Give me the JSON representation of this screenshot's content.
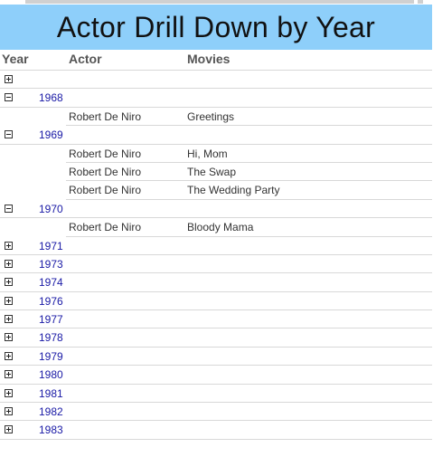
{
  "title": "Actor Drill Down by Year",
  "columns": {
    "year": "Year",
    "actor": "Actor",
    "movies": "Movies"
  },
  "groups": [
    {
      "year": "",
      "expanded": false,
      "rows": []
    },
    {
      "year": "1968",
      "expanded": true,
      "rows": [
        {
          "actor": "Robert De Niro",
          "movie": "Greetings"
        }
      ]
    },
    {
      "year": "1969",
      "expanded": true,
      "rows": [
        {
          "actor": "Robert De Niro",
          "movie": "Hi, Mom"
        },
        {
          "actor": "Robert De Niro",
          "movie": "The Swap"
        },
        {
          "actor": "Robert De Niro",
          "movie": "The Wedding Party"
        }
      ]
    },
    {
      "year": "1970",
      "expanded": true,
      "rows": [
        {
          "actor": "Robert De Niro",
          "movie": "Bloody Mama"
        }
      ]
    },
    {
      "year": "1971",
      "expanded": false,
      "rows": []
    },
    {
      "year": "1973",
      "expanded": false,
      "rows": []
    },
    {
      "year": "1974",
      "expanded": false,
      "rows": []
    },
    {
      "year": "1976",
      "expanded": false,
      "rows": []
    },
    {
      "year": "1977",
      "expanded": false,
      "rows": []
    },
    {
      "year": "1978",
      "expanded": false,
      "rows": []
    },
    {
      "year": "1979",
      "expanded": false,
      "rows": []
    },
    {
      "year": "1980",
      "expanded": false,
      "rows": []
    },
    {
      "year": "1981",
      "expanded": false,
      "rows": []
    },
    {
      "year": "1982",
      "expanded": false,
      "rows": []
    },
    {
      "year": "1983",
      "expanded": false,
      "rows": []
    }
  ]
}
